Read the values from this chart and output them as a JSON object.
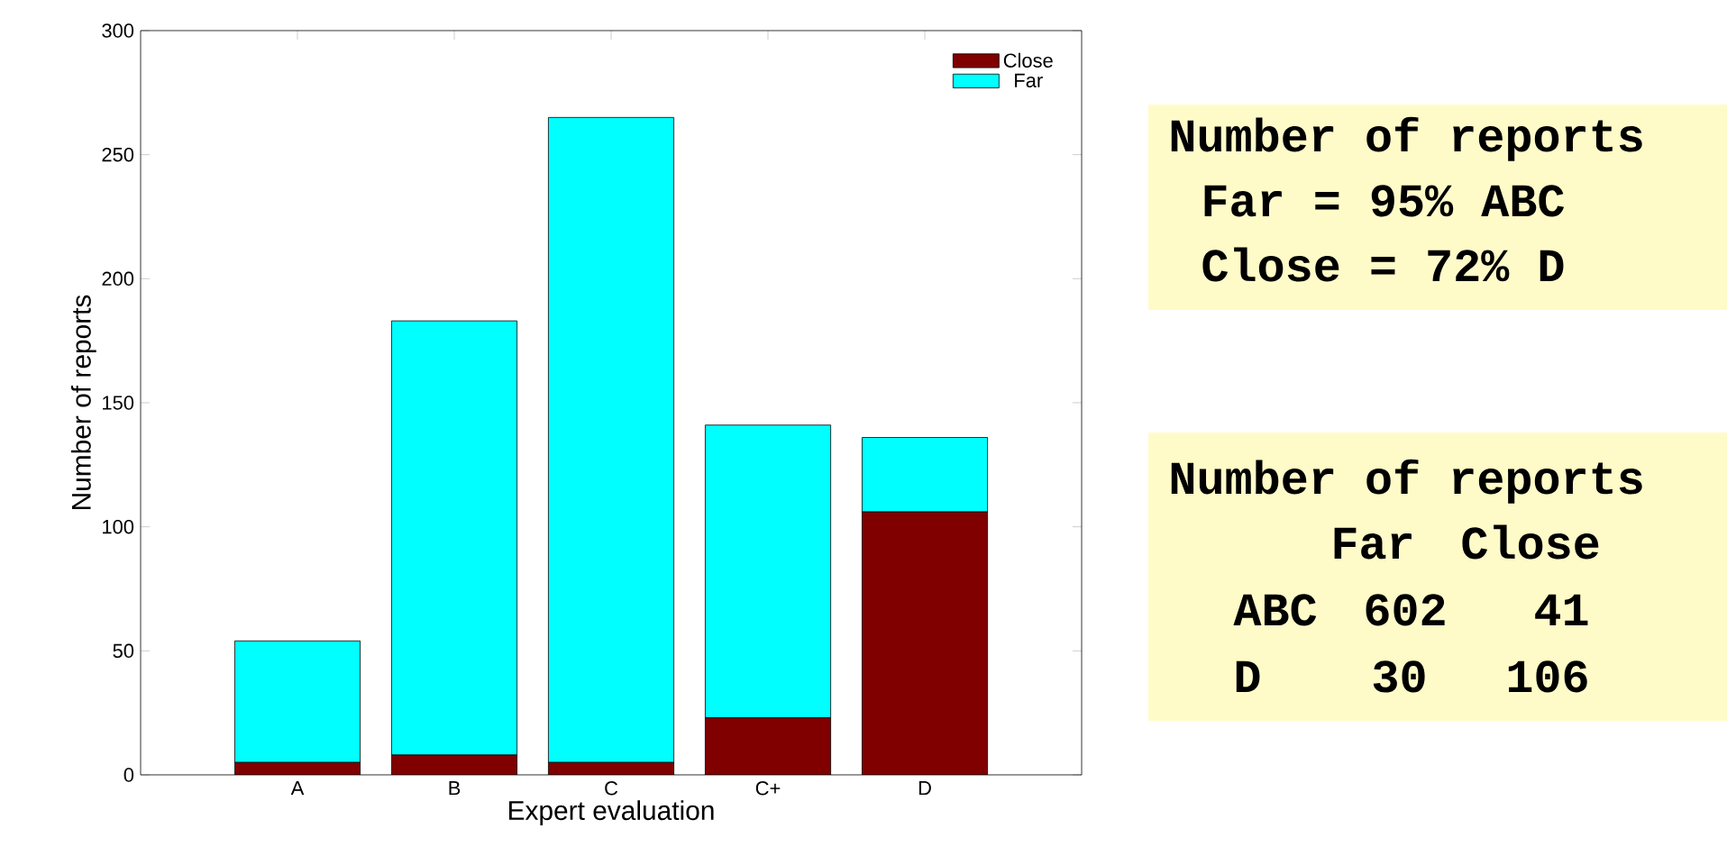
{
  "chart_data": {
    "type": "bar",
    "stacked": true,
    "xlabel": "Expert evaluation",
    "ylabel": "Number of reports",
    "categories": [
      "A",
      "B",
      "C",
      "C+",
      "D"
    ],
    "series": [
      {
        "name": "Close",
        "color": "#800000",
        "values": [
          5,
          8,
          5,
          23,
          106
        ]
      },
      {
        "name": "Far",
        "color": "#00ffff",
        "values": [
          49,
          175,
          260,
          118,
          30
        ]
      }
    ],
    "ylim": [
      0,
      300
    ],
    "yticks": [
      0,
      50,
      100,
      150,
      200,
      250,
      300
    ],
    "legend": "top right",
    "annotations": [
      "Number of reports",
      "Far = 95% ABC",
      "Close = 72% D",
      "Number of reports",
      "Far",
      "Close",
      "ABC",
      "602",
      "41",
      "D",
      "30",
      "106"
    ]
  }
}
